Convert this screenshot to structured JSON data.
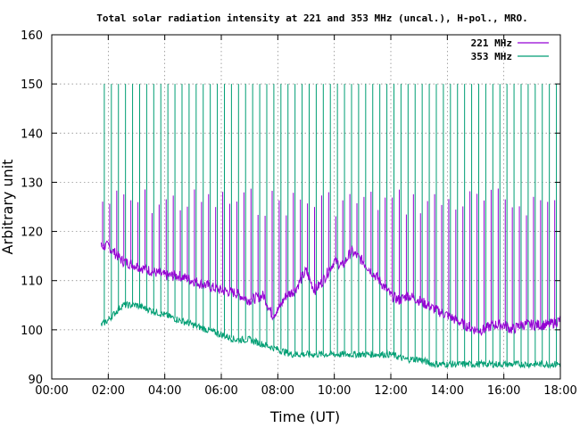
{
  "chart_data": {
    "type": "line",
    "title": "Total solar radiation intensity at 221 and 353 MHz (uncal.), H-pol., MRO.",
    "xlabel": "Time (UT)",
    "ylabel": "Arbitrary unit",
    "xlim": [
      0,
      18
    ],
    "ylim": [
      90,
      160
    ],
    "x_ticks": [
      "00:00",
      "02:00",
      "04:00",
      "06:00",
      "08:00",
      "10:00",
      "12:00",
      "14:00",
      "16:00",
      "18:00"
    ],
    "y_ticks": [
      "90",
      "100",
      "110",
      "120",
      "130",
      "140",
      "150",
      "160"
    ],
    "grid": true,
    "legend_position": "top-right",
    "colors": {
      "221 MHz": "#9400d3",
      "353 MHz": "#009e73"
    },
    "spike_interval_hours": 0.25,
    "spike_221_level": 129,
    "spike_353_level": 150,
    "series": [
      {
        "name": "221 MHz",
        "x": [
          1.75,
          2.0,
          2.5,
          3.0,
          3.5,
          4.0,
          4.5,
          5.0,
          5.5,
          6.0,
          6.5,
          7.0,
          7.5,
          7.8,
          8.0,
          8.3,
          8.6,
          9.0,
          9.3,
          9.6,
          10.0,
          10.3,
          10.6,
          11.0,
          11.3,
          11.6,
          12.0,
          12.3,
          12.6,
          13.0,
          13.3,
          13.6,
          14.0,
          14.3,
          14.6,
          15.0,
          15.3,
          15.6,
          16.0,
          16.3,
          16.6,
          17.0,
          17.3,
          17.6,
          18.0
        ],
        "y": [
          117,
          117,
          114,
          113,
          112,
          111,
          111,
          110,
          109,
          108,
          107.5,
          106,
          107,
          103,
          104,
          107,
          108,
          112,
          108,
          110,
          114,
          113,
          116,
          114,
          112,
          110,
          107,
          106,
          107,
          106,
          105,
          104,
          103,
          102,
          101,
          100,
          100,
          101,
          101,
          100,
          101,
          101,
          101,
          101,
          102
        ]
      },
      {
        "name": "353 MHz",
        "x": [
          1.75,
          2.0,
          2.5,
          3.0,
          3.5,
          4.0,
          4.5,
          5.0,
          5.5,
          6.0,
          6.5,
          7.0,
          7.5,
          8.0,
          8.5,
          9.0,
          9.5,
          10.0,
          10.5,
          11.0,
          11.5,
          12.0,
          12.5,
          13.0,
          13.5,
          14.0,
          14.5,
          15.0,
          15.5,
          16.0,
          16.5,
          17.0,
          17.5,
          18.0
        ],
        "y": [
          101,
          102,
          105,
          105,
          104,
          103,
          102,
          101,
          100,
          99,
          98,
          98,
          97,
          96,
          95,
          95,
          95,
          95,
          95,
          95,
          95,
          95,
          94,
          94,
          93,
          93,
          93,
          93,
          93,
          93,
          93,
          93,
          93,
          93
        ]
      }
    ]
  }
}
